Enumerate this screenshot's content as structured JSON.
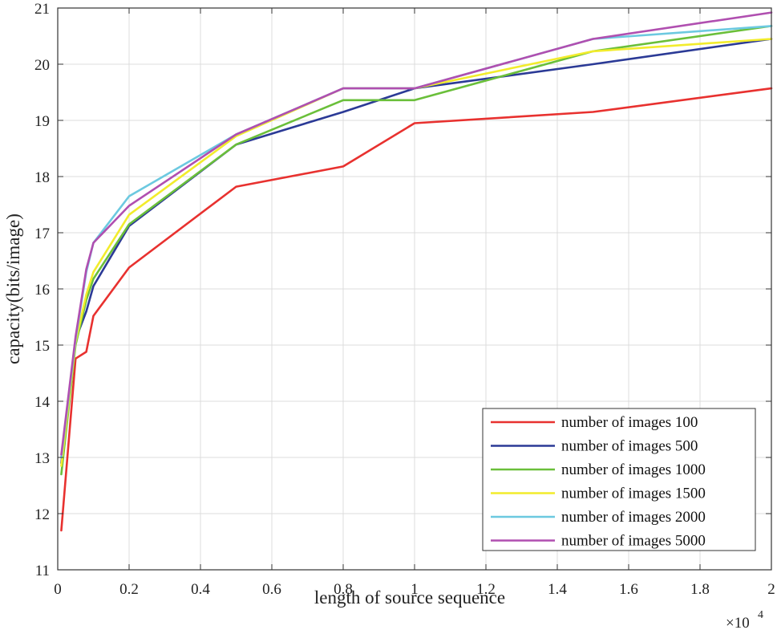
{
  "chart_data": {
    "type": "line",
    "title": "",
    "xlabel": "length of source sequence",
    "ylabel": "capacity(bits/image)",
    "x_multiplier_base": "×10",
    "x_multiplier_exponent": "4",
    "xlim": [
      0,
      2
    ],
    "ylim": [
      11,
      21
    ],
    "xticks": [
      0,
      0.2,
      0.4,
      0.6,
      0.8,
      1,
      1.2,
      1.4,
      1.6,
      1.8,
      2
    ],
    "xtick_labels": [
      "0",
      "0.2",
      "0.4",
      "0.6",
      "0.8",
      "1",
      "1.2",
      "1.4",
      "1.6",
      "1.8",
      "2"
    ],
    "yticks": [
      11,
      12,
      13,
      14,
      15,
      16,
      17,
      18,
      19,
      20,
      21
    ],
    "ytick_labels": [
      "11",
      "12",
      "13",
      "14",
      "15",
      "16",
      "17",
      "18",
      "19",
      "20",
      "21"
    ],
    "grid": true,
    "legend_position": "bottom-right",
    "series": [
      {
        "name": "number of images 100",
        "color": "#e8312f",
        "x": [
          0.01,
          0.05,
          0.08,
          0.1,
          0.2,
          0.5,
          0.8,
          1.0,
          1.5,
          2.0
        ],
        "y": [
          11.7,
          14.76,
          14.88,
          15.52,
          16.38,
          17.82,
          18.18,
          18.95,
          19.15,
          19.57
        ]
      },
      {
        "name": "number of images 500",
        "color": "#2b3a96",
        "x": [
          0.01,
          0.05,
          0.08,
          0.1,
          0.2,
          0.5,
          0.8,
          1.0,
          1.5,
          2.0
        ],
        "y": [
          12.9,
          15.1,
          15.6,
          16.05,
          17.12,
          18.57,
          19.15,
          19.57,
          20.0,
          20.45
        ]
      },
      {
        "name": "number of images 1000",
        "color": "#6abf3a",
        "x": [
          0.01,
          0.05,
          0.08,
          0.1,
          0.2,
          0.5,
          0.8,
          1.0,
          1.5,
          2.0
        ],
        "y": [
          12.7,
          15.0,
          15.8,
          16.18,
          17.15,
          18.57,
          19.36,
          19.36,
          20.23,
          20.68
        ]
      },
      {
        "name": "number of images 1500",
        "color": "#f2ec2c",
        "x": [
          0.01,
          0.05,
          0.08,
          0.1,
          0.2,
          0.5,
          0.8,
          1.0,
          1.5,
          2.0
        ],
        "y": [
          12.85,
          15.05,
          15.9,
          16.3,
          17.32,
          18.72,
          19.57,
          19.57,
          20.23,
          20.45
        ]
      },
      {
        "name": "number of images 2000",
        "color": "#6cc9e0",
        "x": [
          0.01,
          0.05,
          0.08,
          0.1,
          0.2,
          0.5,
          0.8,
          1.0,
          1.5,
          2.0
        ],
        "y": [
          13.0,
          15.1,
          16.3,
          16.82,
          17.65,
          18.75,
          19.57,
          19.57,
          20.45,
          20.68
        ]
      },
      {
        "name": "number of images 5000",
        "color": "#b04fb0",
        "x": [
          0.01,
          0.05,
          0.08,
          0.1,
          0.2,
          0.5,
          0.8,
          1.0,
          1.5,
          2.0
        ],
        "y": [
          13.05,
          15.15,
          16.35,
          16.82,
          17.48,
          18.75,
          19.57,
          19.57,
          20.45,
          20.92
        ]
      }
    ]
  }
}
